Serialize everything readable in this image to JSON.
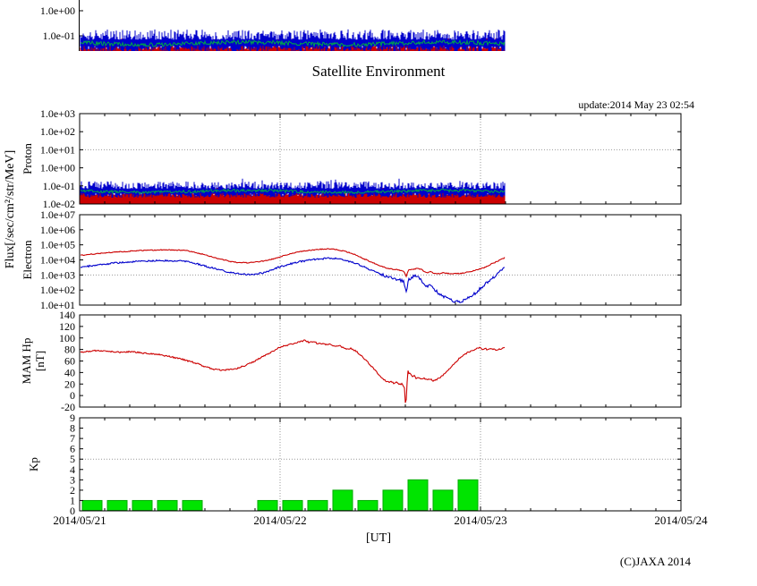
{
  "header": {
    "title": "Satellite Environment",
    "update": "update:2014 May 23 02:54"
  },
  "footer": {
    "xlabel": "[UT]",
    "copyright": "(C)JAXA 2014"
  },
  "labels": {
    "flux_axis": "Flux[/sec/cm²/str/MeV]"
  },
  "colors": {
    "red": "#cc0000",
    "blue": "#0000cc",
    "green": "#00aa44",
    "kp_bar": "#00e400",
    "kp_bar_edge": "#00aa00",
    "grid": "#999999",
    "frame": "#000000"
  },
  "x_axis": {
    "tick_labels": [
      "2014/05/21",
      "2014/05/22",
      "2014/05/23",
      "2014/05/24"
    ],
    "day_hours": [
      0,
      24,
      48,
      72
    ],
    "hours_total": 72,
    "minor_tick_hours": 3,
    "data_end_hour": 50.9
  },
  "top_fragment": {
    "visible": true,
    "tick_labels": [
      "1.0e+00",
      "1.0e-01"
    ],
    "note": "bottom sliver of a previous proton-flux panel cropped by the screenshot top edge"
  },
  "chart_data": [
    {
      "panel": "proton",
      "type": "line",
      "ylabel": "Proton",
      "yscale": "log",
      "ylim": [
        0.01,
        1000
      ],
      "grid_y": 10,
      "yticks": [
        {
          "v": 1000,
          "label": "1.0e+03"
        },
        {
          "v": 100,
          "label": "1.0e+02"
        },
        {
          "v": 10,
          "label": "1.0e+01"
        },
        {
          "v": 1,
          "label": "1.0e+00"
        },
        {
          "v": 0.1,
          "label": "1.0e-01"
        },
        {
          "v": 0.01,
          "label": "1.0e-02"
        }
      ],
      "series": [
        {
          "name": "proton-red",
          "color": "#cc0000",
          "render": "noise-floor",
          "top_range": [
            0.028,
            0.08
          ],
          "floor": 0.01
        },
        {
          "name": "proton-blue",
          "color": "#0000cc",
          "render": "noise-band",
          "lo_range": [
            0.022,
            0.04
          ],
          "hi_range": [
            0.07,
            0.18
          ]
        },
        {
          "name": "proton-green",
          "color": "#00aa44",
          "render": "wander-line",
          "level": 0.05,
          "wander": 0.16
        }
      ]
    },
    {
      "panel": "electron",
      "type": "line",
      "ylabel": "Electron",
      "yscale": "log",
      "ylim": [
        10,
        10000000
      ],
      "grid_y": 1000,
      "yticks": [
        {
          "v": 10000000,
          "label": "1.0e+07"
        },
        {
          "v": 1000000,
          "label": "1.0e+06"
        },
        {
          "v": 100000,
          "label": "1.0e+05"
        },
        {
          "v": 10000,
          "label": "1.0e+04"
        },
        {
          "v": 1000,
          "label": "1.0e+03"
        },
        {
          "v": 100,
          "label": "1.0e+02"
        },
        {
          "v": 10,
          "label": "1.0e+01"
        }
      ],
      "series": [
        {
          "name": "electron-red",
          "color": "#cc0000",
          "jitter": 0.03,
          "points": [
            [
              0,
              20000
            ],
            [
              2,
              26000
            ],
            [
              4,
              32000
            ],
            [
              6,
              38000
            ],
            [
              8,
              43000
            ],
            [
              10,
              46000
            ],
            [
              12,
              44000
            ],
            [
              13,
              40000
            ],
            [
              14,
              30000
            ],
            [
              15,
              22000
            ],
            [
              16,
              15000
            ],
            [
              17,
              11000
            ],
            [
              18,
              8000
            ],
            [
              19,
              6500
            ],
            [
              20,
              6500
            ],
            [
              21,
              7000
            ],
            [
              22,
              8500
            ],
            [
              23,
              11000
            ],
            [
              24,
              16000
            ],
            [
              25,
              24000
            ],
            [
              26,
              32000
            ],
            [
              27,
              40000
            ],
            [
              28,
              46000
            ],
            [
              29,
              52000
            ],
            [
              30,
              54000
            ],
            [
              31,
              46000
            ],
            [
              32,
              34000
            ],
            [
              33,
              22000
            ],
            [
              34,
              12000
            ],
            [
              35,
              7000
            ],
            [
              36,
              4000
            ],
            [
              37,
              2600
            ],
            [
              38,
              2200
            ],
            [
              38.8,
              1800
            ],
            [
              39.1,
              800
            ],
            [
              39.4,
              2200
            ],
            [
              40,
              2400
            ],
            [
              40.5,
              2800
            ],
            [
              41,
              2200
            ],
            [
              41.5,
              1400
            ],
            [
              42,
              1600
            ],
            [
              42.5,
              1300
            ],
            [
              43,
              1200
            ],
            [
              43.5,
              1400
            ],
            [
              44,
              1300
            ],
            [
              44.5,
              1200
            ],
            [
              45,
              1300
            ],
            [
              45.5,
              1200
            ],
            [
              46,
              1400
            ],
            [
              46.5,
              1600
            ],
            [
              47,
              1800
            ],
            [
              47.5,
              2200
            ],
            [
              48,
              2600
            ],
            [
              48.5,
              3200
            ],
            [
              49,
              4500
            ],
            [
              49.5,
              6000
            ],
            [
              50,
              8000
            ],
            [
              50.5,
              11000
            ],
            [
              50.9,
              14000
            ]
          ]
        },
        {
          "name": "electron-blue",
          "color": "#0000cc",
          "jitter": 0.055,
          "points": [
            [
              0,
              3200
            ],
            [
              2,
              4500
            ],
            [
              4,
              6000
            ],
            [
              6,
              7500
            ],
            [
              8,
              8500
            ],
            [
              10,
              9000
            ],
            [
              12,
              8500
            ],
            [
              13,
              7500
            ],
            [
              14,
              5500
            ],
            [
              15,
              4000
            ],
            [
              16,
              2800
            ],
            [
              17,
              2000
            ],
            [
              18,
              1500
            ],
            [
              19,
              1200
            ],
            [
              20,
              1050
            ],
            [
              21,
              1100
            ],
            [
              22,
              1400
            ],
            [
              23,
              2200
            ],
            [
              24,
              3500
            ],
            [
              25,
              5000
            ],
            [
              26,
              7000
            ],
            [
              27,
              8500
            ],
            [
              28,
              10500
            ],
            [
              29,
              12000
            ],
            [
              30,
              13000
            ],
            [
              31,
              11500
            ],
            [
              32,
              9000
            ],
            [
              33,
              6000
            ],
            [
              34,
              3500
            ],
            [
              35,
              2000
            ],
            [
              36,
              1100
            ],
            [
              37,
              700
            ],
            [
              38,
              500
            ],
            [
              38.8,
              400
            ],
            [
              39.1,
              60
            ],
            [
              39.4,
              500
            ],
            [
              40,
              800
            ],
            [
              40.5,
              900
            ],
            [
              41,
              350
            ],
            [
              41.5,
              160
            ],
            [
              42,
              240
            ],
            [
              42.5,
              110
            ],
            [
              43,
              60
            ],
            [
              43.5,
              40
            ],
            [
              44,
              30
            ],
            [
              44.5,
              22
            ],
            [
              45,
              18
            ],
            [
              45.5,
              16
            ],
            [
              46,
              20
            ],
            [
              46.5,
              28
            ],
            [
              47,
              45
            ],
            [
              47.5,
              70
            ],
            [
              48,
              130
            ],
            [
              48.5,
              240
            ],
            [
              49,
              380
            ],
            [
              49.5,
              650
            ],
            [
              50,
              1200
            ],
            [
              50.5,
              2200
            ],
            [
              50.9,
              3200
            ]
          ]
        }
      ]
    },
    {
      "panel": "mam-hp",
      "type": "line",
      "ylabel": "MAM Hp",
      "ylabel2": "[nT]",
      "yscale": "linear",
      "ylim": [
        -20,
        140
      ],
      "grid_y": null,
      "yticks": [
        {
          "v": 140,
          "label": "140"
        },
        {
          "v": 120,
          "label": "120"
        },
        {
          "v": 100,
          "label": "100"
        },
        {
          "v": 80,
          "label": "80"
        },
        {
          "v": 60,
          "label": "60"
        },
        {
          "v": 40,
          "label": "40"
        },
        {
          "v": 20,
          "label": "20"
        },
        {
          "v": 0,
          "label": "0"
        },
        {
          "v": -20,
          "label": "-20"
        }
      ],
      "series": [
        {
          "name": "mam-hp-red",
          "color": "#cc0000",
          "jitter": 1.2,
          "points": [
            [
              0,
              75
            ],
            [
              1,
              77
            ],
            [
              2,
              78
            ],
            [
              3,
              77
            ],
            [
              4,
              76
            ],
            [
              5,
              75
            ],
            [
              6,
              76
            ],
            [
              7,
              75
            ],
            [
              8,
              73
            ],
            [
              9,
              72
            ],
            [
              10,
              70
            ],
            [
              11,
              67
            ],
            [
              12,
              64
            ],
            [
              13,
              60
            ],
            [
              14,
              56
            ],
            [
              15,
              50
            ],
            [
              16,
              46
            ],
            [
              17,
              44
            ],
            [
              18,
              45
            ],
            [
              19,
              48
            ],
            [
              20,
              53
            ],
            [
              21,
              60
            ],
            [
              22,
              68
            ],
            [
              23,
              76
            ],
            [
              24,
              84
            ],
            [
              25,
              88
            ],
            [
              26,
              92
            ],
            [
              27,
              96
            ],
            [
              27.5,
              92
            ],
            [
              28,
              94
            ],
            [
              28.5,
              90
            ],
            [
              29,
              91
            ],
            [
              29.5,
              88
            ],
            [
              30,
              89
            ],
            [
              30.5,
              86
            ],
            [
              31,
              87
            ],
            [
              31.5,
              84
            ],
            [
              32,
              80
            ],
            [
              32.5,
              82
            ],
            [
              33,
              78
            ],
            [
              33.5,
              72
            ],
            [
              34,
              65
            ],
            [
              34.5,
              58
            ],
            [
              35,
              50
            ],
            [
              35.5,
              42
            ],
            [
              36,
              34
            ],
            [
              36.5,
              27
            ],
            [
              37,
              23
            ],
            [
              37.3,
              25
            ],
            [
              37.6,
              21
            ],
            [
              38,
              23
            ],
            [
              38.3,
              19
            ],
            [
              38.6,
              21
            ],
            [
              38.9,
              14
            ],
            [
              39.05,
              -24
            ],
            [
              39.2,
              20
            ],
            [
              39.3,
              45
            ],
            [
              39.45,
              36
            ],
            [
              39.6,
              39
            ],
            [
              39.8,
              33
            ],
            [
              40,
              35
            ],
            [
              40.3,
              30
            ],
            [
              40.6,
              32
            ],
            [
              41,
              28
            ],
            [
              41.3,
              30
            ],
            [
              41.6,
              27
            ],
            [
              42,
              29
            ],
            [
              42.3,
              25
            ],
            [
              42.6,
              27
            ],
            [
              43,
              30
            ],
            [
              43.5,
              35
            ],
            [
              44,
              42
            ],
            [
              44.5,
              50
            ],
            [
              45,
              58
            ],
            [
              45.5,
              65
            ],
            [
              46,
              70
            ],
            [
              46.5,
              75
            ],
            [
              47,
              78
            ],
            [
              47.5,
              81
            ],
            [
              48,
              83
            ],
            [
              48.2,
              79
            ],
            [
              48.5,
              82
            ],
            [
              48.8,
              80
            ],
            [
              49.2,
              82
            ],
            [
              49.6,
              80
            ],
            [
              50,
              79
            ],
            [
              50.4,
              81
            ],
            [
              50.9,
              84
            ]
          ]
        }
      ]
    },
    {
      "panel": "kp",
      "type": "bar",
      "ylabel": "Kp",
      "yscale": "linear",
      "ylim": [
        0,
        9
      ],
      "grid_y": 5,
      "yticks": [
        {
          "v": 9,
          "label": "9"
        },
        {
          "v": 8,
          "label": "8"
        },
        {
          "v": 7,
          "label": "7"
        },
        {
          "v": 6,
          "label": "6"
        },
        {
          "v": 5,
          "label": "5"
        },
        {
          "v": 4,
          "label": "4"
        },
        {
          "v": 3,
          "label": "3"
        },
        {
          "v": 2,
          "label": "2"
        },
        {
          "v": 1,
          "label": "1"
        },
        {
          "v": 0,
          "label": "0"
        }
      ],
      "bars": {
        "start_hour": 0,
        "interval_hours": 3,
        "values": [
          1,
          1,
          1,
          1,
          1,
          0,
          0,
          1,
          1,
          1,
          2,
          1,
          2,
          3,
          2,
          3
        ]
      }
    }
  ]
}
